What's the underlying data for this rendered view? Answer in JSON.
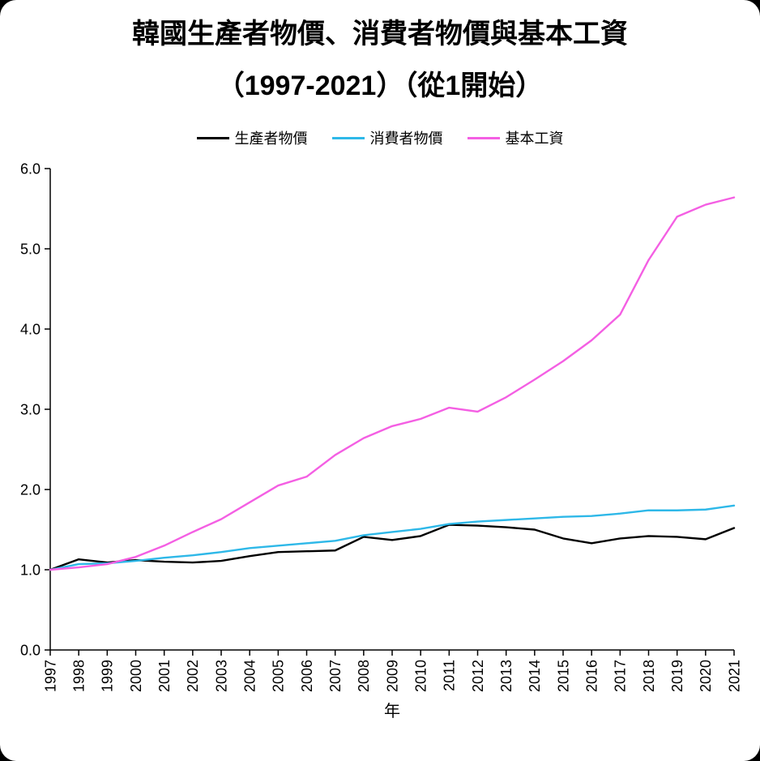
{
  "page": {
    "title_line1": "韓國生產者物價、消費者物價與基本工資",
    "title_line2": "（1997-2021）（從1開始）"
  },
  "chart_data": {
    "type": "line",
    "title": "韓國生產者物價、消費者物價與基本工資（1997-2021）（從1開始）",
    "xlabel": "年",
    "ylabel": "",
    "ylim": [
      0,
      6
    ],
    "ytick_labels": [
      "0.0",
      "1.0",
      "2.0",
      "3.0",
      "4.0",
      "5.0",
      "6.0"
    ],
    "grid": false,
    "legend_position": "top-center",
    "x": [
      1997,
      1998,
      1999,
      2000,
      2001,
      2002,
      2003,
      2004,
      2005,
      2006,
      2007,
      2008,
      2009,
      2010,
      2011,
      2012,
      2013,
      2014,
      2015,
      2016,
      2017,
      2018,
      2019,
      2020,
      2021
    ],
    "series": [
      {
        "name": "生產者物價",
        "color": "#000000",
        "values": [
          1.0,
          1.13,
          1.09,
          1.12,
          1.1,
          1.09,
          1.11,
          1.17,
          1.22,
          1.23,
          1.24,
          1.41,
          1.37,
          1.42,
          1.56,
          1.55,
          1.53,
          1.5,
          1.39,
          1.33,
          1.39,
          1.42,
          1.41,
          1.38,
          1.52
        ]
      },
      {
        "name": "消費者物價",
        "color": "#2EB8E8",
        "values": [
          1.0,
          1.07,
          1.08,
          1.11,
          1.15,
          1.18,
          1.22,
          1.27,
          1.3,
          1.33,
          1.36,
          1.43,
          1.47,
          1.51,
          1.57,
          1.6,
          1.62,
          1.64,
          1.66,
          1.67,
          1.7,
          1.74,
          1.74,
          1.75,
          1.8
        ]
      },
      {
        "name": "基本工資",
        "color": "#F45FE3",
        "values": [
          1.0,
          1.03,
          1.07,
          1.16,
          1.3,
          1.47,
          1.63,
          1.84,
          2.05,
          2.16,
          2.43,
          2.64,
          2.79,
          2.88,
          3.02,
          2.97,
          3.15,
          3.37,
          3.6,
          3.86,
          4.18,
          4.86,
          5.4,
          5.55,
          5.64
        ]
      }
    ]
  }
}
